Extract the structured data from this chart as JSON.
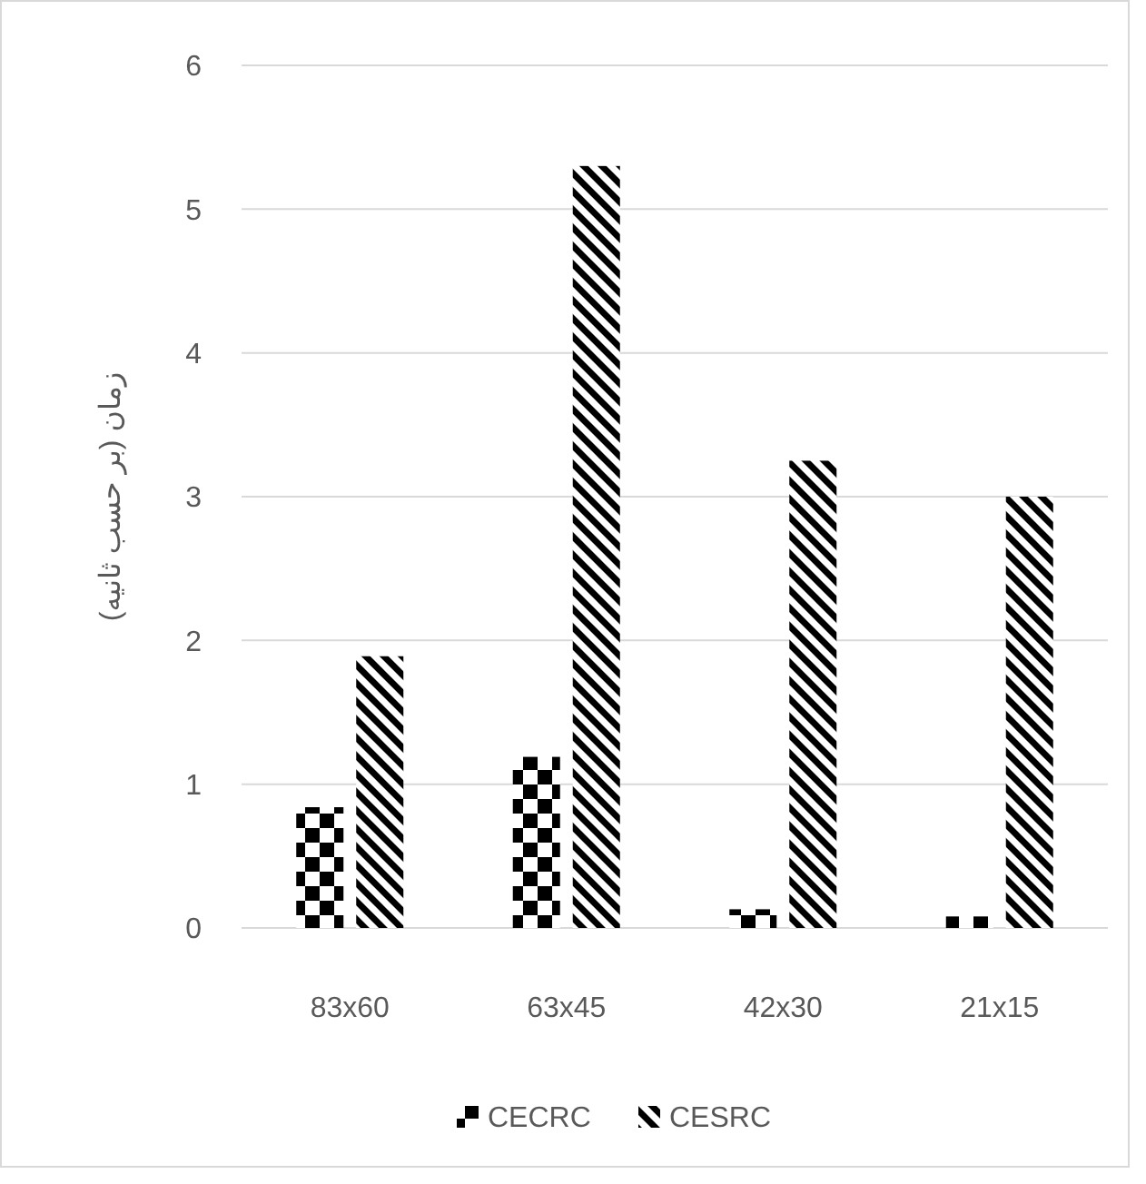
{
  "chart_data": {
    "type": "bar",
    "ylabel": "زمان (بر حسب ثانیه)",
    "categories": [
      "83x60",
      "63x45",
      "42x30",
      "21x15"
    ],
    "series": [
      {
        "name": "CECRC",
        "color": "#000000",
        "values": [
          0.84,
          1.19,
          0.13,
          0.08
        ]
      },
      {
        "name": "CESRC",
        "color": "#000000",
        "values": [
          1.89,
          5.3,
          3.25,
          3.0
        ]
      }
    ],
    "ylim": [
      0,
      6
    ],
    "yticks": [
      0,
      1,
      2,
      3,
      4,
      5,
      6
    ],
    "grid": "y",
    "legend": "bottom"
  }
}
